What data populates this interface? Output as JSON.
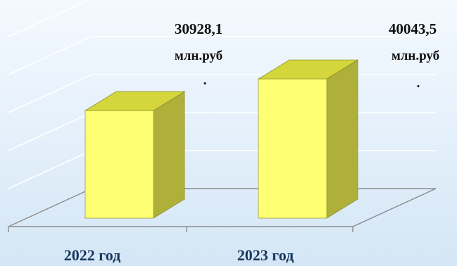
{
  "chart_data": {
    "type": "bar",
    "categories": [
      "2022 год",
      "2023 год"
    ],
    "series": [
      {
        "values": [
          30928.1,
          40043.5
        ]
      }
    ],
    "data_labels": [
      {
        "value": "30928,1",
        "unit": "млн.руб",
        "dot": "."
      },
      {
        "value": "40043,5",
        "unit": "млн.руб",
        "dot": "."
      }
    ],
    "title": "",
    "xlabel": "",
    "ylabel": "",
    "ylim": [
      0,
      60000
    ],
    "grid": true,
    "legend": "none",
    "three_d": true,
    "colors": {
      "bar_front": "#ffff73",
      "bar_side": "#aeb03a",
      "bar_top": "#d4d63c",
      "grid": "#ffffff",
      "axis": "#8c8c8c",
      "category_text": "#17365d"
    }
  }
}
